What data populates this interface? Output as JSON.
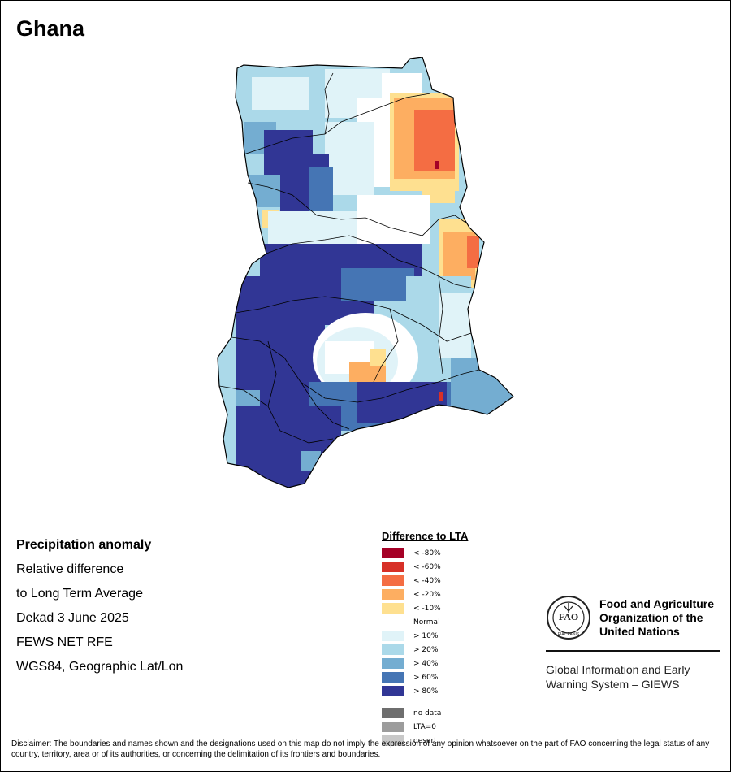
{
  "title": "Ghana",
  "info": {
    "line1": "Precipitation anomaly",
    "line2": "Relative difference",
    "line3": "to Long Term Average",
    "line4": "Dekad 3 June 2025",
    "line5": "FEWS NET RFE",
    "line6": "WGS84, Geographic Lat/Lon"
  },
  "legend": {
    "title": "Difference to LTA",
    "classes": [
      {
        "label": "< -80%",
        "color": "#a50026"
      },
      {
        "label": "< -60%",
        "color": "#d73027"
      },
      {
        "label": "< -40%",
        "color": "#f46d43"
      },
      {
        "label": "< -20%",
        "color": "#fdae61"
      },
      {
        "label": "< -10%",
        "color": "#fee090"
      },
      {
        "label": "Normal",
        "color": "#ffffff"
      },
      {
        "label": "> 10%",
        "color": "#e0f3f8"
      },
      {
        "label": "> 20%",
        "color": "#abd9e9"
      },
      {
        "label": "> 40%",
        "color": "#74add1"
      },
      {
        "label": "> 60%",
        "color": "#4575b4"
      },
      {
        "label": "> 80%",
        "color": "#313695"
      }
    ],
    "extra": [
      {
        "label": "no data",
        "color": "#6e6e6e"
      },
      {
        "label": "LTA=0",
        "color": "#9c9c9c"
      },
      {
        "label": "desert",
        "color": "#c8c8c8"
      }
    ]
  },
  "org": {
    "fao_line1": "Food and Agriculture",
    "fao_line2": "Organization of the",
    "fao_line3": "United Nations",
    "giews_line1": "Global Information and Early",
    "giews_line2": "Warning System – GIEWS",
    "logo_letters": "FAO",
    "logo_motto": "FIAT PANIS"
  },
  "disclaimer": "Disclaimer: The boundaries and names shown and the designations used on this map do not imply the expression of any opinion whatsoever on the part of FAO concerning the legal status of any country, territory, area or of its authorities, or concerning the delimitation of its frontiers and boundaries."
}
